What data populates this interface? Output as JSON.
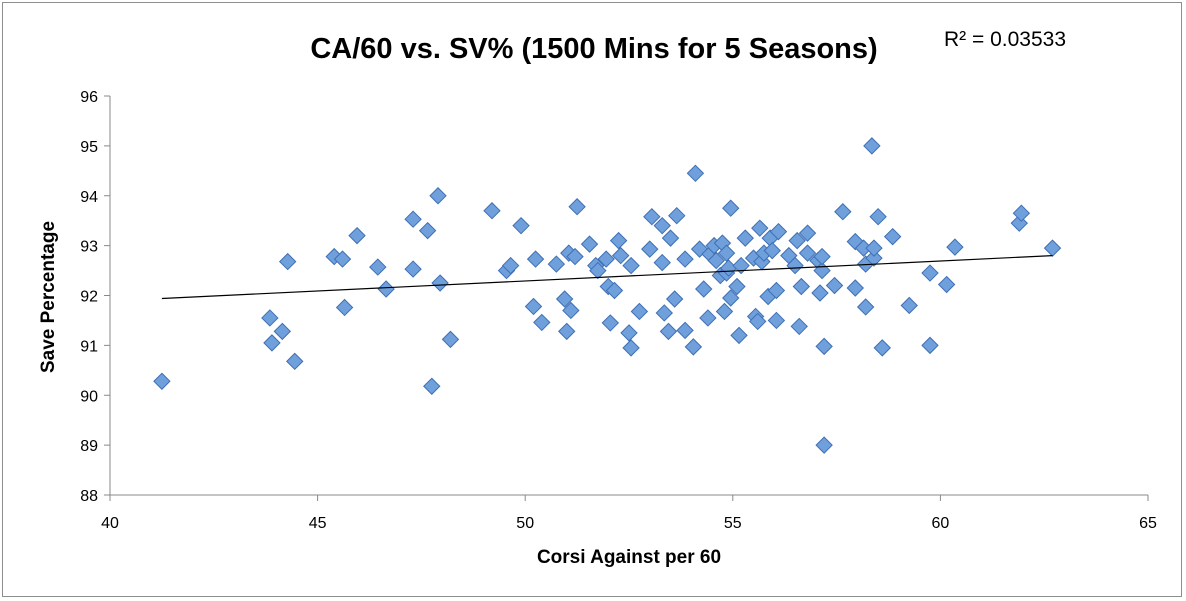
{
  "chart_data": {
    "type": "scatter",
    "title": "CA/60 vs. SV% (1500 Mins for 5 Seasons)",
    "xlabel": "Corsi Against per 60",
    "ylabel": "Save Percentage",
    "xlim": [
      40,
      65
    ],
    "ylim": [
      88,
      96
    ],
    "xticks": [
      "40",
      "45",
      "50",
      "55",
      "60",
      "65"
    ],
    "yticks": [
      "88",
      "89",
      "90",
      "91",
      "92",
      "93",
      "94",
      "95",
      "96"
    ],
    "annotation": "R² = 0.03533",
    "trendline": {
      "x1": 41.25,
      "y1": 91.94,
      "x2": 62.7,
      "y2": 92.8
    },
    "marker_color": "#6fa0dc",
    "marker_edge": "#3f6fb5",
    "points": [
      [
        41.25,
        90.28
      ],
      [
        43.85,
        91.55
      ],
      [
        43.9,
        91.05
      ],
      [
        44.15,
        91.28
      ],
      [
        44.28,
        92.68
      ],
      [
        44.45,
        90.68
      ],
      [
        45.4,
        92.78
      ],
      [
        45.6,
        92.73
      ],
      [
        45.65,
        91.76
      ],
      [
        45.95,
        93.2
      ],
      [
        46.45,
        92.57
      ],
      [
        46.65,
        92.13
      ],
      [
        47.3,
        93.53
      ],
      [
        47.3,
        92.53
      ],
      [
        47.65,
        93.3
      ],
      [
        47.75,
        90.18
      ],
      [
        47.9,
        94.0
      ],
      [
        47.95,
        92.25
      ],
      [
        48.2,
        91.12
      ],
      [
        49.2,
        93.7
      ],
      [
        49.55,
        92.5
      ],
      [
        49.65,
        92.6
      ],
      [
        49.9,
        93.4
      ],
      [
        50.2,
        91.78
      ],
      [
        50.25,
        92.73
      ],
      [
        50.4,
        91.46
      ],
      [
        50.75,
        92.63
      ],
      [
        50.95,
        91.93
      ],
      [
        51.0,
        91.28
      ],
      [
        51.05,
        92.85
      ],
      [
        51.1,
        91.7
      ],
      [
        51.2,
        92.78
      ],
      [
        51.25,
        93.78
      ],
      [
        51.55,
        93.03
      ],
      [
        51.7,
        92.6
      ],
      [
        51.75,
        92.5
      ],
      [
        51.95,
        92.73
      ],
      [
        52.0,
        92.18
      ],
      [
        52.05,
        91.45
      ],
      [
        52.15,
        92.1
      ],
      [
        52.25,
        93.1
      ],
      [
        52.3,
        92.8
      ],
      [
        52.5,
        91.25
      ],
      [
        52.55,
        92.6
      ],
      [
        52.55,
        90.95
      ],
      [
        52.75,
        91.68
      ],
      [
        53.0,
        92.93
      ],
      [
        53.05,
        93.58
      ],
      [
        53.3,
        92.66
      ],
      [
        53.3,
        93.4
      ],
      [
        53.35,
        91.65
      ],
      [
        53.45,
        91.28
      ],
      [
        53.5,
        93.15
      ],
      [
        53.65,
        93.6
      ],
      [
        53.6,
        91.93
      ],
      [
        53.85,
        92.73
      ],
      [
        53.85,
        91.3
      ],
      [
        54.05,
        90.97
      ],
      [
        54.1,
        94.45
      ],
      [
        54.2,
        92.93
      ],
      [
        54.3,
        92.13
      ],
      [
        54.4,
        91.55
      ],
      [
        54.45,
        92.83
      ],
      [
        54.55,
        93.0
      ],
      [
        54.6,
        92.7
      ],
      [
        54.7,
        92.4
      ],
      [
        54.75,
        93.05
      ],
      [
        54.8,
        91.68
      ],
      [
        54.85,
        92.85
      ],
      [
        54.85,
        92.45
      ],
      [
        54.9,
        92.55
      ],
      [
        54.95,
        91.95
      ],
      [
        54.95,
        93.75
      ],
      [
        55.1,
        92.18
      ],
      [
        55.15,
        91.2
      ],
      [
        55.2,
        92.6
      ],
      [
        55.3,
        93.15
      ],
      [
        55.5,
        92.75
      ],
      [
        55.55,
        91.58
      ],
      [
        55.6,
        91.48
      ],
      [
        55.65,
        93.35
      ],
      [
        55.7,
        92.68
      ],
      [
        55.75,
        92.85
      ],
      [
        55.85,
        91.98
      ],
      [
        55.9,
        93.15
      ],
      [
        55.95,
        92.9
      ],
      [
        56.05,
        92.1
      ],
      [
        56.05,
        91.5
      ],
      [
        56.1,
        93.28
      ],
      [
        56.35,
        92.8
      ],
      [
        56.5,
        92.6
      ],
      [
        56.55,
        93.1
      ],
      [
        56.6,
        91.38
      ],
      [
        56.65,
        92.18
      ],
      [
        56.8,
        93.25
      ],
      [
        56.8,
        92.85
      ],
      [
        57.05,
        92.7
      ],
      [
        57.1,
        92.05
      ],
      [
        57.15,
        92.5
      ],
      [
        57.15,
        92.78
      ],
      [
        57.2,
        90.98
      ],
      [
        57.2,
        89.0
      ],
      [
        57.45,
        92.2
      ],
      [
        57.65,
        93.68
      ],
      [
        57.95,
        93.08
      ],
      [
        57.95,
        92.15
      ],
      [
        58.15,
        92.95
      ],
      [
        58.2,
        92.63
      ],
      [
        58.2,
        91.77
      ],
      [
        58.35,
        95.0
      ],
      [
        58.4,
        92.75
      ],
      [
        58.4,
        92.95
      ],
      [
        58.5,
        93.58
      ],
      [
        58.6,
        90.95
      ],
      [
        58.85,
        93.18
      ],
      [
        59.25,
        91.8
      ],
      [
        59.75,
        92.45
      ],
      [
        59.75,
        91.0
      ],
      [
        60.15,
        92.22
      ],
      [
        60.35,
        92.97
      ],
      [
        61.9,
        93.45
      ],
      [
        61.95,
        93.65
      ],
      [
        62.7,
        92.95
      ]
    ]
  }
}
